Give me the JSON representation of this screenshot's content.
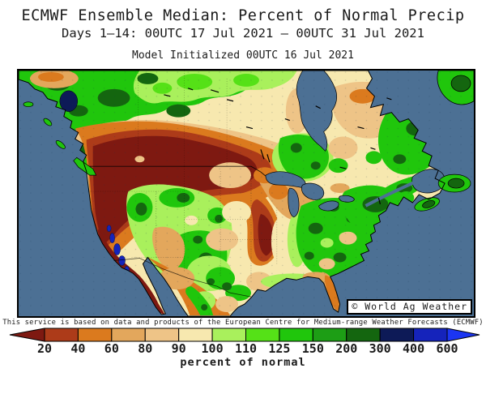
{
  "header": {
    "title": "ECMWF Ensemble Median: Percent of Normal Precip",
    "subtitle": "Days 1–14: 00UTC 17 Jul 2021 – 00UTC 31 Jul 2021",
    "model_init": "Model Initialized 00UTC 16 Jul 2021"
  },
  "map": {
    "watermark": "© World Ag Weather",
    "ocean_color": "#4C7094"
  },
  "legend": {
    "tick_labels": [
      "20",
      "40",
      "60",
      "80",
      "90",
      "100",
      "110",
      "125",
      "150",
      "200",
      "300",
      "400",
      "600"
    ],
    "colors": [
      "#7E1911",
      "#AD3B19",
      "#DB7A1E",
      "#E3A75C",
      "#EEC487",
      "#F7E8AF",
      "#A9F05C",
      "#55E117",
      "#20C60C",
      "#1D9E15",
      "#14660F",
      "#0D1A57",
      "#1523BB",
      "#1B35F2"
    ],
    "caption": "percent of normal"
  },
  "footer": {
    "disclaimer": "This service is based on data and products of the European Centre for Medium-range Weather Forecasts (ECMWF)"
  },
  "chart_data": {
    "type": "heatmap",
    "title": "ECMWF Ensemble Median: Percent of Normal Precip",
    "valid_period": "00UTC 17 Jul 2021 - 00UTC 31 Jul 2021",
    "initialized": "00UTC 16 Jul 2021",
    "units": "percent of normal",
    "legend_values": [
      20,
      40,
      60,
      80,
      90,
      100,
      110,
      125,
      150,
      200,
      300,
      400,
      600
    ],
    "depicted_regions": [
      {
        "region": "Pacific Northwest / northern Rockies / northern Plains",
        "percent_of_normal": "under 20"
      },
      {
        "region": "California coast and Baja",
        "percent_of_normal": "under 20 with spots over 600"
      },
      {
        "region": "Southwest US monsoon (AZ/NM/CO) ",
        "percent_of_normal": "125-300"
      },
      {
        "region": "Upper Midwest (MN/IA/MO)",
        "percent_of_normal": "20-60"
      },
      {
        "region": "Central Plains",
        "percent_of_normal": "80-100"
      },
      {
        "region": "Texas and Southeast US",
        "percent_of_normal": "110-200"
      },
      {
        "region": "Florida peninsula",
        "percent_of_normal": "40-80"
      },
      {
        "region": "New England / eastern Canada",
        "percent_of_normal": "125-300"
      },
      {
        "region": "Western Canada",
        "percent_of_normal": "125-200"
      },
      {
        "region": "Central Canada / Quebec",
        "percent_of_normal": "60-100"
      },
      {
        "region": "Northwest Canada lake spot",
        "percent_of_normal": "300-400"
      }
    ]
  }
}
